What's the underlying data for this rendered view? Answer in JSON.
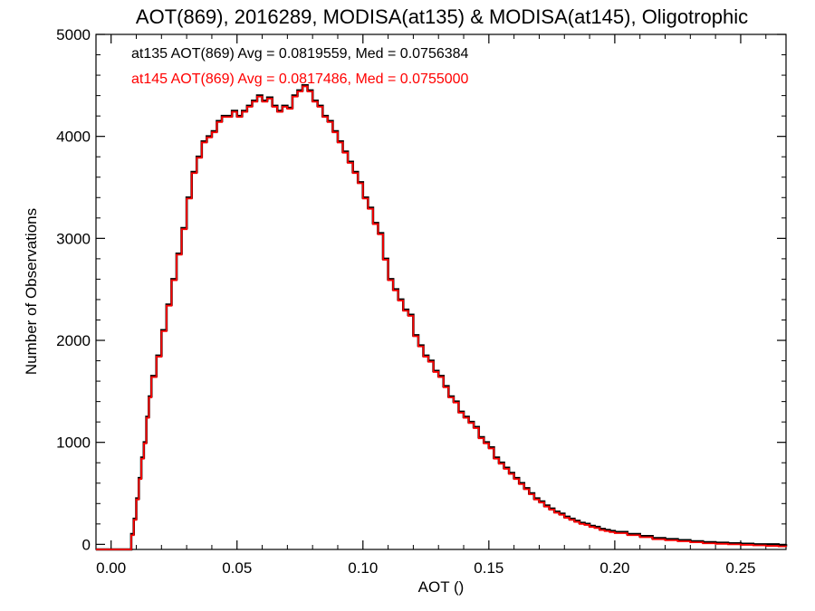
{
  "chart_data": {
    "type": "line",
    "title": "AOT(869), 2016289, MODISA(at135) & MODISA(at145), Oligotrophic",
    "xlabel": "AOT ()",
    "ylabel": "Number of Observations",
    "xlim": [
      -0.006,
      0.268
    ],
    "ylim": [
      -50,
      5000
    ],
    "x_ticks": [
      "0.00",
      "0.05",
      "0.10",
      "0.15",
      "0.20",
      "0.25"
    ],
    "x_tick_values": [
      0.0,
      0.05,
      0.1,
      0.15,
      0.2,
      0.25
    ],
    "y_ticks": [
      "0",
      "1000",
      "2000",
      "3000",
      "4000",
      "5000"
    ],
    "y_tick_values": [
      0,
      1000,
      2000,
      3000,
      4000,
      5000
    ],
    "grid": false,
    "legend_position": "top-left",
    "annotations": [
      {
        "text": "at135 AOT(869) Avg = 0.0819559, Med = 0.0756384",
        "color": "#000000"
      },
      {
        "text": "at145 AOT(869) Avg = 0.0817486, Med = 0.0755000",
        "color": "#ff0000"
      }
    ],
    "series": [
      {
        "color": "#000000",
        "x": [
          -0.006,
          0.0075,
          0.008,
          0.009,
          0.01,
          0.011,
          0.012,
          0.013,
          0.014,
          0.015,
          0.016,
          0.018,
          0.02,
          0.022,
          0.024,
          0.026,
          0.028,
          0.03,
          0.032,
          0.034,
          0.036,
          0.038,
          0.04,
          0.042,
          0.044,
          0.046,
          0.048,
          0.05,
          0.052,
          0.054,
          0.056,
          0.058,
          0.06,
          0.062,
          0.064,
          0.066,
          0.068,
          0.07,
          0.072,
          0.074,
          0.076,
          0.078,
          0.08,
          0.082,
          0.084,
          0.086,
          0.088,
          0.09,
          0.092,
          0.094,
          0.096,
          0.098,
          0.1,
          0.102,
          0.104,
          0.106,
          0.108,
          0.11,
          0.112,
          0.114,
          0.116,
          0.118,
          0.12,
          0.122,
          0.124,
          0.126,
          0.128,
          0.13,
          0.132,
          0.134,
          0.136,
          0.138,
          0.14,
          0.142,
          0.144,
          0.146,
          0.148,
          0.15,
          0.152,
          0.154,
          0.156,
          0.158,
          0.16,
          0.162,
          0.164,
          0.166,
          0.168,
          0.17,
          0.172,
          0.174,
          0.176,
          0.178,
          0.18,
          0.182,
          0.184,
          0.186,
          0.188,
          0.19,
          0.192,
          0.194,
          0.196,
          0.198,
          0.2,
          0.205,
          0.21,
          0.215,
          0.22,
          0.225,
          0.23,
          0.235,
          0.24,
          0.245,
          0.25,
          0.255,
          0.26,
          0.265,
          0.268
        ],
        "y": [
          -50,
          -50,
          100,
          250,
          450,
          650,
          850,
          1000,
          1250,
          1450,
          1650,
          1850,
          2100,
          2350,
          2600,
          2850,
          3100,
          3400,
          3650,
          3800,
          3950,
          4000,
          4050,
          4150,
          4200,
          4200,
          4250,
          4200,
          4250,
          4300,
          4350,
          4400,
          4350,
          4380,
          4300,
          4250,
          4300,
          4280,
          4400,
          4450,
          4500,
          4450,
          4350,
          4300,
          4200,
          4150,
          4050,
          3950,
          3850,
          3750,
          3650,
          3550,
          3400,
          3300,
          3150,
          3050,
          2800,
          2600,
          2500,
          2400,
          2300,
          2250,
          2050,
          1950,
          1850,
          1800,
          1700,
          1650,
          1550,
          1450,
          1400,
          1300,
          1250,
          1200,
          1150,
          1050,
          1000,
          950,
          850,
          800,
          750,
          700,
          650,
          600,
          550,
          500,
          450,
          420,
          380,
          350,
          320,
          300,
          270,
          250,
          230,
          210,
          200,
          180,
          170,
          150,
          140,
          130,
          120,
          100,
          80,
          60,
          50,
          40,
          30,
          20,
          15,
          10,
          5,
          0,
          0,
          -10,
          -20
        ]
      },
      {
        "color": "#ff0000",
        "x": [
          -0.006,
          0.0075,
          0.008,
          0.009,
          0.01,
          0.011,
          0.012,
          0.013,
          0.014,
          0.015,
          0.016,
          0.018,
          0.02,
          0.022,
          0.024,
          0.026,
          0.028,
          0.03,
          0.032,
          0.034,
          0.036,
          0.038,
          0.04,
          0.042,
          0.044,
          0.046,
          0.048,
          0.05,
          0.052,
          0.054,
          0.056,
          0.058,
          0.06,
          0.062,
          0.064,
          0.066,
          0.068,
          0.07,
          0.072,
          0.074,
          0.076,
          0.078,
          0.08,
          0.082,
          0.084,
          0.086,
          0.088,
          0.09,
          0.092,
          0.094,
          0.096,
          0.098,
          0.1,
          0.102,
          0.104,
          0.106,
          0.108,
          0.11,
          0.112,
          0.114,
          0.116,
          0.118,
          0.12,
          0.122,
          0.124,
          0.126,
          0.128,
          0.13,
          0.132,
          0.134,
          0.136,
          0.138,
          0.14,
          0.142,
          0.144,
          0.146,
          0.148,
          0.15,
          0.152,
          0.154,
          0.156,
          0.158,
          0.16,
          0.162,
          0.164,
          0.166,
          0.168,
          0.17,
          0.172,
          0.174,
          0.176,
          0.178,
          0.18,
          0.182,
          0.184,
          0.186,
          0.188,
          0.19,
          0.192,
          0.194,
          0.196,
          0.198,
          0.2,
          0.205,
          0.21,
          0.215,
          0.22,
          0.225,
          0.23,
          0.235,
          0.24,
          0.245,
          0.25,
          0.255,
          0.26,
          0.265,
          0.268
        ],
        "y": [
          -50,
          -50,
          90,
          240,
          440,
          640,
          840,
          990,
          1240,
          1440,
          1640,
          1840,
          2090,
          2340,
          2590,
          2840,
          3090,
          3390,
          3640,
          3790,
          3940,
          3990,
          4040,
          4140,
          4190,
          4190,
          4240,
          4190,
          4240,
          4290,
          4340,
          4390,
          4340,
          4370,
          4290,
          4240,
          4290,
          4270,
          4390,
          4440,
          4490,
          4440,
          4340,
          4290,
          4190,
          4140,
          4040,
          3940,
          3840,
          3740,
          3640,
          3540,
          3390,
          3290,
          3140,
          3040,
          2790,
          2590,
          2490,
          2390,
          2290,
          2240,
          2040,
          1940,
          1840,
          1790,
          1690,
          1640,
          1540,
          1440,
          1390,
          1290,
          1240,
          1190,
          1140,
          1040,
          990,
          940,
          840,
          790,
          740,
          690,
          640,
          590,
          540,
          490,
          440,
          410,
          370,
          340,
          310,
          290,
          260,
          240,
          220,
          200,
          190,
          170,
          160,
          140,
          130,
          120,
          110,
          90,
          70,
          50,
          40,
          30,
          20,
          10,
          5,
          0,
          -5,
          -10,
          -15,
          -20,
          -25
        ]
      }
    ]
  }
}
